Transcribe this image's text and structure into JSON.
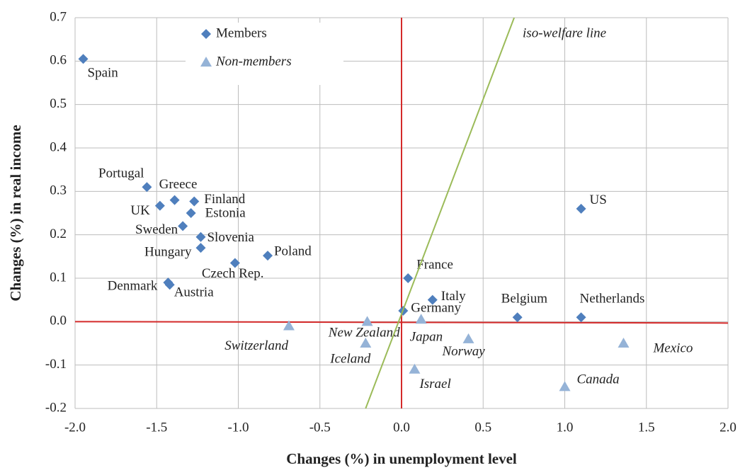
{
  "chart_data": {
    "type": "scatter",
    "xlabel": "Changes (%) in unemployment level",
    "ylabel": "Changes (%) in real income",
    "xlim": [
      -2,
      2
    ],
    "ylim": [
      -0.2,
      0.7
    ],
    "xticks": [
      {
        "value": -2,
        "label": "-2.0"
      },
      -1.5,
      {
        "value": -1,
        "label": "-1.0"
      },
      -0.5,
      {
        "value": 0,
        "label": "0.0"
      },
      0.5,
      {
        "value": 1,
        "label": "1.0"
      },
      1.5,
      {
        "value": 2,
        "label": "2.0"
      }
    ],
    "yticks": [
      -0.2,
      -0.1,
      {
        "value": 0,
        "label": "0.0"
      },
      0.1,
      0.2,
      0.3,
      0.4,
      0.5,
      0.6,
      0.7
    ],
    "grid": true,
    "series": [
      {
        "name": "Members",
        "marker": "diamond",
        "color": "#4f7fbd",
        "labels": [
          "Spain",
          "Portugal",
          "Greece",
          "Finland",
          "UK",
          "Estonia",
          "Sweden",
          "Slovenia",
          "Hungary",
          "Czech Rep.",
          "Poland",
          "Denmark",
          "Austria",
          "France",
          "Italy",
          "Germany",
          "Belgium",
          "Netherlands",
          "US"
        ],
        "x": [
          -1.95,
          -1.56,
          -1.39,
          -1.27,
          -1.48,
          -1.29,
          -1.34,
          -1.23,
          -1.23,
          -1.02,
          -0.82,
          -1.43,
          -1.42,
          0.04,
          0.19,
          0.01,
          0.71,
          1.1,
          1.1
        ],
        "values": [
          0.605,
          0.31,
          0.28,
          0.277,
          0.267,
          0.25,
          0.22,
          0.195,
          0.17,
          0.135,
          0.152,
          0.09,
          0.085,
          0.1,
          0.05,
          0.025,
          0.01,
          0.01,
          0.26
        ]
      },
      {
        "name": "Non-members",
        "marker": "triangle",
        "color": "#95b3d7",
        "labels": [
          "Switzerland",
          "New Zealand",
          "Iceland",
          "Japan",
          "Israel",
          "Norway",
          "Canada",
          "Mexico"
        ],
        "x": [
          -0.69,
          -0.21,
          -0.22,
          0.12,
          0.08,
          0.41,
          1.0,
          1.36
        ],
        "values": [
          -0.01,
          0.0,
          -0.05,
          0.005,
          -0.11,
          -0.04,
          -0.15,
          -0.05
        ]
      },
      {
        "name": "iso-welfare line",
        "marker": "line",
        "color": "#9bbb59",
        "x": [
          -0.22,
          0.69
        ],
        "values": [
          -0.2,
          0.7
        ]
      }
    ]
  }
}
